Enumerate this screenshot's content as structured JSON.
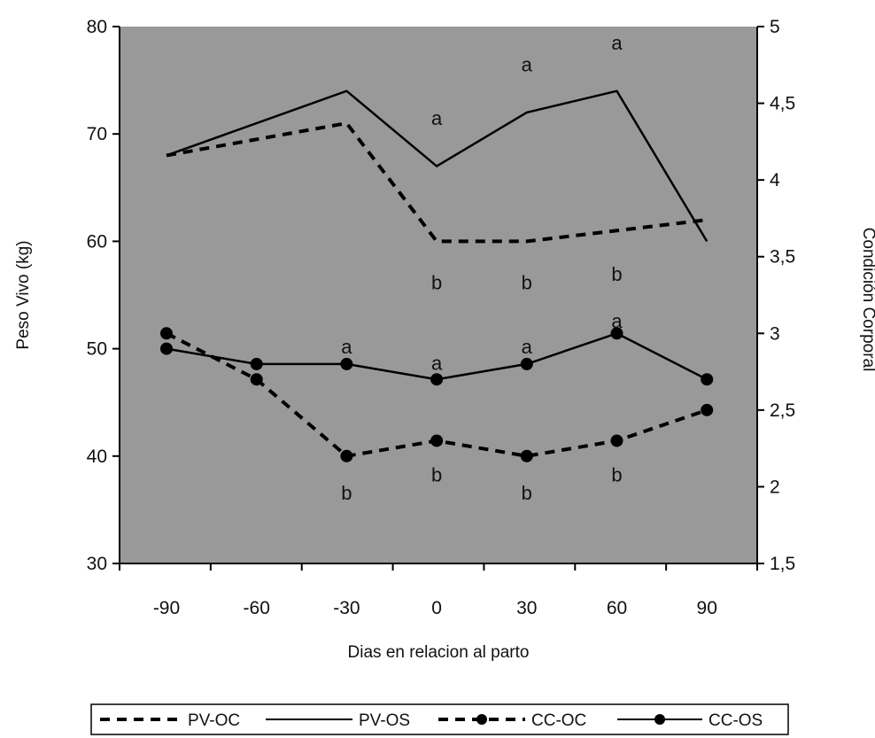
{
  "chart_data": {
    "type": "line",
    "xlabel": "Dias en relacion al parto",
    "ylabel": "Peso Vivo (kg)",
    "y2label": "Condición Corporal",
    "categories": [
      "-90",
      "-60",
      "-30",
      "0",
      "30",
      "60",
      "90"
    ],
    "ylim": [
      30,
      80
    ],
    "y_ticks": [
      "30",
      "40",
      "50",
      "60",
      "70",
      "80"
    ],
    "y2lim": [
      1.5,
      5
    ],
    "y2_ticks": [
      "1,5",
      "2",
      "2,5",
      "3",
      "3,5",
      "4",
      "4,5",
      "5"
    ],
    "grid": false,
    "plot_background": "#999999",
    "legend_position": "bottom",
    "series": [
      {
        "name": "PV-OC",
        "axis": "left",
        "style": "dashed",
        "marker": "none",
        "x": [
          -90,
          -30,
          0,
          30,
          60,
          90
        ],
        "values": [
          68,
          71,
          60,
          60,
          61,
          62
        ]
      },
      {
        "name": "PV-OS",
        "axis": "left",
        "style": "solid",
        "marker": "none",
        "x": [
          -90,
          -30,
          0,
          30,
          60,
          90
        ],
        "values": [
          68,
          74,
          67,
          72,
          74,
          60
        ]
      },
      {
        "name": "CC-OC",
        "axis": "right",
        "style": "dashed",
        "marker": "circle",
        "x": [
          -90,
          -60,
          -30,
          0,
          30,
          60,
          90
        ],
        "values": [
          3.0,
          2.7,
          2.2,
          2.3,
          2.2,
          2.3,
          2.5
        ]
      },
      {
        "name": "CC-OS",
        "axis": "right",
        "style": "solid",
        "marker": "circle",
        "x": [
          -90,
          -60,
          -30,
          0,
          30,
          60,
          90
        ],
        "values": [
          2.9,
          2.8,
          2.8,
          2.7,
          2.8,
          3.0,
          2.7
        ]
      }
    ],
    "annotations": [
      {
        "text": "a",
        "x": 0,
        "y": 71.5,
        "axis": "left"
      },
      {
        "text": "a",
        "x": 30,
        "y": 76.5,
        "axis": "left"
      },
      {
        "text": "a",
        "x": 60,
        "y": 78.5,
        "axis": "left"
      },
      {
        "text": "b",
        "x": 0,
        "y": 56.2,
        "axis": "left"
      },
      {
        "text": "b",
        "x": 30,
        "y": 56.2,
        "axis": "left"
      },
      {
        "text": "b",
        "x": 60,
        "y": 57.0,
        "axis": "left"
      },
      {
        "text": "a",
        "x": -30,
        "y": 50.2,
        "axis": "left"
      },
      {
        "text": "a",
        "x": 0,
        "y": 48.7,
        "axis": "left"
      },
      {
        "text": "a",
        "x": 30,
        "y": 50.2,
        "axis": "left"
      },
      {
        "text": "a",
        "x": 60,
        "y": 52.6,
        "axis": "left"
      },
      {
        "text": "b",
        "x": -30,
        "y": 36.6,
        "axis": "left"
      },
      {
        "text": "b",
        "x": 0,
        "y": 38.3,
        "axis": "left"
      },
      {
        "text": "b",
        "x": 30,
        "y": 36.6,
        "axis": "left"
      },
      {
        "text": "b",
        "x": 60,
        "y": 38.3,
        "axis": "left"
      }
    ]
  }
}
